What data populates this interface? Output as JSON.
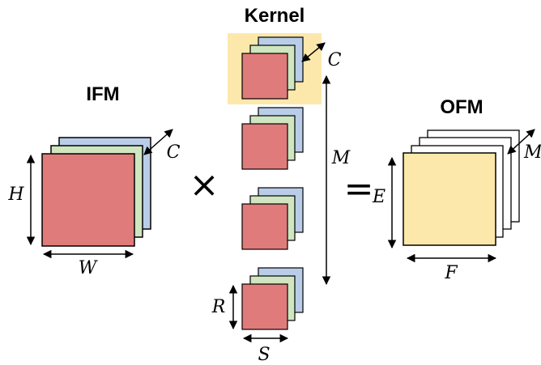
{
  "titles": {
    "kernel": "Kernel",
    "ifm": "IFM",
    "ofm": "OFM"
  },
  "operators": {
    "times": "×",
    "equals": "="
  },
  "dimension_labels": {
    "ifm_height": "H",
    "ifm_width": "W",
    "ifm_channels": "C",
    "kernel_channels": "C",
    "kernel_count": "M",
    "kernel_height": "R",
    "kernel_width": "S",
    "ofm_height": "E",
    "ofm_width": "F",
    "ofm_channels": "M"
  },
  "colors": {
    "red_channel": "#e07b7b",
    "green_channel": "#cfe6c0",
    "blue_channel": "#b9cde9",
    "output_fill": "#fde8ab",
    "highlight": "#fde8ab",
    "stroke": "#000000"
  }
}
